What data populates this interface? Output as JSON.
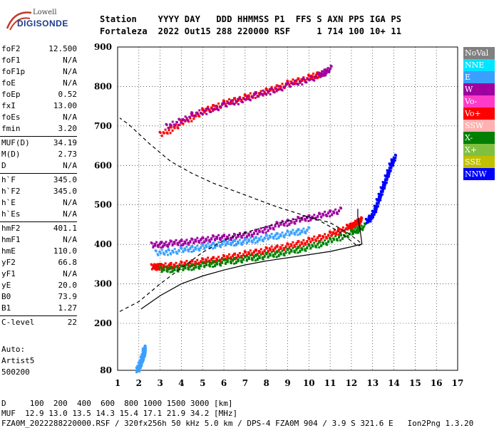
{
  "logo": {
    "top": "Lowell",
    "bottom": "DIGISONDE"
  },
  "header": {
    "line1": "Station    YYYY DAY   DDD HHMMSS P1  FFS S AXN PPS IGA PS",
    "line2": "Fortaleza  2022 Out15 288 220000 RSF     1 714 100 10+ 11"
  },
  "params": [
    {
      "k": "foF2",
      "v": "12.500"
    },
    {
      "k": "foF1",
      "v": "N/A"
    },
    {
      "k": "foF1p",
      "v": "N/A"
    },
    {
      "k": "foE",
      "v": "N/A"
    },
    {
      "k": "foEp",
      "v": "0.52"
    },
    {
      "k": "fxI",
      "v": "13.00"
    },
    {
      "k": "foEs",
      "v": "N/A"
    },
    {
      "k": "fmin",
      "v": "3.20"
    },
    {
      "k": "MUF(D)",
      "v": "34.19"
    },
    {
      "k": "M(D)",
      "v": "2.73"
    },
    {
      "k": "D",
      "v": "N/A"
    },
    {
      "k": "h`F",
      "v": "345.0"
    },
    {
      "k": "h`F2",
      "v": "345.0"
    },
    {
      "k": "h`E",
      "v": "N/A"
    },
    {
      "k": "h`Es",
      "v": "N/A"
    },
    {
      "k": "hmF2",
      "v": "401.1"
    },
    {
      "k": "hmF1",
      "v": "N/A"
    },
    {
      "k": "hmE",
      "v": "110.0"
    },
    {
      "k": "yF2",
      "v": "66.8"
    },
    {
      "k": "yF1",
      "v": "N/A"
    },
    {
      "k": "yE",
      "v": "20.0"
    },
    {
      "k": "B0",
      "v": "73.9"
    },
    {
      "k": "B1",
      "v": "1.27"
    },
    {
      "k": "C-level",
      "v": "22"
    }
  ],
  "auto": {
    "line1": "Auto:",
    "line2": "Artist5",
    "line3": "500200"
  },
  "legend": [
    {
      "label": "NoVal",
      "color": "#808080"
    },
    {
      "label": "NNE",
      "color": "#00e5ff"
    },
    {
      "label": "E",
      "color": "#3aa0ff"
    },
    {
      "label": "W",
      "color": "#a000a0"
    },
    {
      "label": "Vo-",
      "color": "#ff3cc8"
    },
    {
      "label": "Vo+",
      "color": "#ff0000"
    },
    {
      "label": "SSW",
      "color": "#ffb0b0"
    },
    {
      "label": "X-",
      "color": "#008000"
    },
    {
      "label": "X+",
      "color": "#80c040"
    },
    {
      "label": "SSE",
      "color": "#c0c000"
    },
    {
      "label": "NNW",
      "color": "#0000ff"
    }
  ],
  "chart_data": {
    "type": "scatter",
    "title": "",
    "xlabel": "",
    "ylabel": "",
    "xlim": [
      1,
      17
    ],
    "ylim": [
      80,
      900
    ],
    "x_ticks": [
      "1",
      "2",
      "3",
      "4",
      "5",
      "6",
      "7",
      "8",
      "9",
      "10",
      "11",
      "12",
      "13",
      "14",
      "15",
      "16",
      "17"
    ],
    "y_ticks": [
      "80",
      "200",
      "300",
      "400",
      "500",
      "600",
      "700",
      "800",
      "900"
    ],
    "grid": true,
    "dashed_profile": [
      [
        1.1,
        230
      ],
      [
        2.0,
        255
      ],
      [
        3.0,
        300
      ],
      [
        4.0,
        340
      ],
      [
        5.0,
        380
      ],
      [
        6.0,
        410
      ],
      [
        7.0,
        430
      ],
      [
        8.0,
        445
      ],
      [
        9.0,
        460
      ],
      [
        10.0,
        470
      ],
      [
        11.0,
        455
      ],
      [
        11.8,
        430
      ],
      [
        12.3,
        410
      ],
      [
        12.5,
        401
      ],
      [
        12.3,
        395
      ],
      [
        11.5,
        430
      ],
      [
        10.5,
        460
      ],
      [
        9.5,
        478
      ],
      [
        8.5,
        495
      ],
      [
        7.5,
        515
      ],
      [
        6.5,
        535
      ],
      [
        5.5,
        555
      ],
      [
        4.5,
        580
      ],
      [
        3.5,
        610
      ],
      [
        2.5,
        655
      ],
      [
        1.5,
        705
      ],
      [
        1.1,
        720
      ]
    ],
    "solid_profile": [
      [
        2.1,
        236
      ],
      [
        3.0,
        270
      ],
      [
        4.0,
        300
      ],
      [
        5.0,
        320
      ],
      [
        6.0,
        335
      ],
      [
        7.0,
        348
      ],
      [
        8.0,
        358
      ],
      [
        9.0,
        366
      ],
      [
        10.0,
        374
      ],
      [
        11.0,
        382
      ],
      [
        12.0,
        394
      ],
      [
        12.5,
        401
      ],
      [
        12.4,
        440
      ],
      [
        12.3,
        470
      ],
      [
        12.3,
        490
      ]
    ],
    "traces": [
      {
        "name": "F2 O-trace",
        "color": "#ff0000",
        "points": [
          [
            2.6,
            345
          ],
          [
            3,
            346
          ],
          [
            4,
            352
          ],
          [
            5,
            360
          ],
          [
            6,
            368
          ],
          [
            7,
            378
          ],
          [
            8,
            388
          ],
          [
            9,
            398
          ],
          [
            10,
            412
          ],
          [
            11,
            428
          ],
          [
            11.8,
            445
          ],
          [
            12.2,
            455
          ],
          [
            12.4,
            465
          ]
        ]
      },
      {
        "name": "F2 X-trace",
        "color": "#008000",
        "points": [
          [
            3,
            338
          ],
          [
            4,
            342
          ],
          [
            5,
            350
          ],
          [
            6,
            358
          ],
          [
            7,
            366
          ],
          [
            8,
            374
          ],
          [
            9,
            384
          ],
          [
            10,
            396
          ],
          [
            11,
            412
          ],
          [
            12,
            432
          ],
          [
            12.6,
            450
          ]
        ]
      },
      {
        "name": "F2 upper W",
        "color": "#a000a0",
        "points": [
          [
            2.6,
            400
          ],
          [
            3.5,
            405
          ],
          [
            4.5,
            410
          ],
          [
            5.5,
            418
          ],
          [
            6.5,
            422
          ],
          [
            7.5,
            432
          ],
          [
            8.5,
            452
          ],
          [
            9.5,
            465
          ],
          [
            10.5,
            475
          ],
          [
            11.5,
            490
          ]
        ]
      },
      {
        "name": "F2 E",
        "color": "#3aa0ff",
        "points": [
          [
            2.8,
            380
          ],
          [
            4,
            388
          ],
          [
            5,
            396
          ],
          [
            6,
            405
          ],
          [
            7,
            410
          ],
          [
            8,
            420
          ],
          [
            9,
            430
          ],
          [
            10,
            440
          ]
        ]
      },
      {
        "name": "Multi-hop",
        "color": "#ff0000",
        "points": [
          [
            3,
            680
          ],
          [
            4,
            710
          ],
          [
            5,
            740
          ],
          [
            6,
            760
          ],
          [
            7,
            775
          ],
          [
            8,
            790
          ],
          [
            9,
            810
          ],
          [
            10,
            825
          ],
          [
            10.8,
            840
          ]
        ]
      },
      {
        "name": "Multi-hop W",
        "color": "#a000a0",
        "points": [
          [
            3.3,
            700
          ],
          [
            4.5,
            730
          ],
          [
            6,
            755
          ],
          [
            7.5,
            780
          ],
          [
            9,
            805
          ],
          [
            10.5,
            830
          ],
          [
            11,
            850
          ]
        ]
      },
      {
        "name": "NNW rise",
        "color": "#0000ff",
        "points": [
          [
            12.7,
            460
          ],
          [
            13,
            480
          ],
          [
            13.2,
            510
          ],
          [
            13.4,
            540
          ],
          [
            13.6,
            570
          ],
          [
            13.8,
            600
          ],
          [
            14,
            625
          ]
        ]
      },
      {
        "name": "Low echo",
        "color": "#3aa0ff",
        "points": [
          [
            1.9,
            82
          ],
          [
            2,
            95
          ],
          [
            2.1,
            110
          ],
          [
            2.2,
            125
          ],
          [
            2.2,
            140
          ]
        ]
      }
    ]
  },
  "footer": {
    "line1": "D     100  200  400  600  800 1000 1500 3000 [km]",
    "line2": "MUF  12.9 13.0 13.5 14.3 15.4 17.1 21.9 34.2 [MHz]",
    "line3": "FZA0M_2022288220000.RSF / 320fx256h 50 kHz 5.0 km / DPS-4 FZA0M 904 / 3.9 S 321.6 E   Ion2Png 1.3.20"
  }
}
